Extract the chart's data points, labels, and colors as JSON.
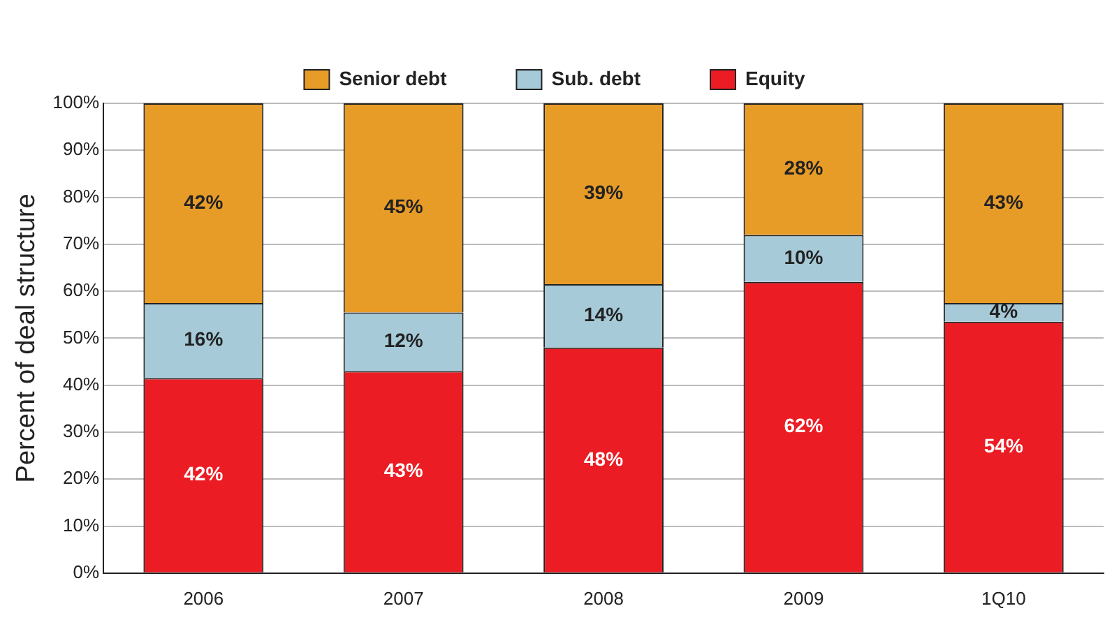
{
  "chart_data": {
    "type": "bar",
    "stacked": true,
    "ylabel": "Percent of deal structure",
    "categories": [
      "2006",
      "2007",
      "2008",
      "2009",
      "1Q10"
    ],
    "series": [
      {
        "name": "Equity",
        "color": "#ec1c24",
        "values": [
          41.5,
          43,
          48,
          62,
          53.5
        ],
        "value_labels": [
          "42%",
          "43%",
          "48%",
          "62%",
          "54%"
        ]
      },
      {
        "name": "Sub. debt",
        "color": "#a6cad8",
        "values": [
          16,
          12.5,
          13.5,
          10,
          4
        ],
        "value_labels": [
          "16%",
          "12%",
          "14%",
          "10%",
          "4%"
        ]
      },
      {
        "name": "Senior debt",
        "color": "#e89c28",
        "values": [
          42.5,
          44.5,
          38.5,
          28,
          42.5
        ],
        "value_labels": [
          "42%",
          "45%",
          "39%",
          "28%",
          "43%"
        ]
      }
    ],
    "ylim": [
      0,
      100
    ],
    "yticks": [
      {
        "value": 0,
        "label": "0%"
      },
      {
        "value": 10,
        "label": "10%"
      },
      {
        "value": 20,
        "label": "20%"
      },
      {
        "value": 30,
        "label": "30%"
      },
      {
        "value": 40,
        "label": "40%"
      },
      {
        "value": 50,
        "label": "50%"
      },
      {
        "value": 60,
        "label": "60%"
      },
      {
        "value": 70,
        "label": "70%"
      },
      {
        "value": 80,
        "label": "80%"
      },
      {
        "value": 90,
        "label": "90%"
      },
      {
        "value": 100,
        "label": "100%"
      }
    ],
    "grid": "y",
    "legend": "top"
  }
}
